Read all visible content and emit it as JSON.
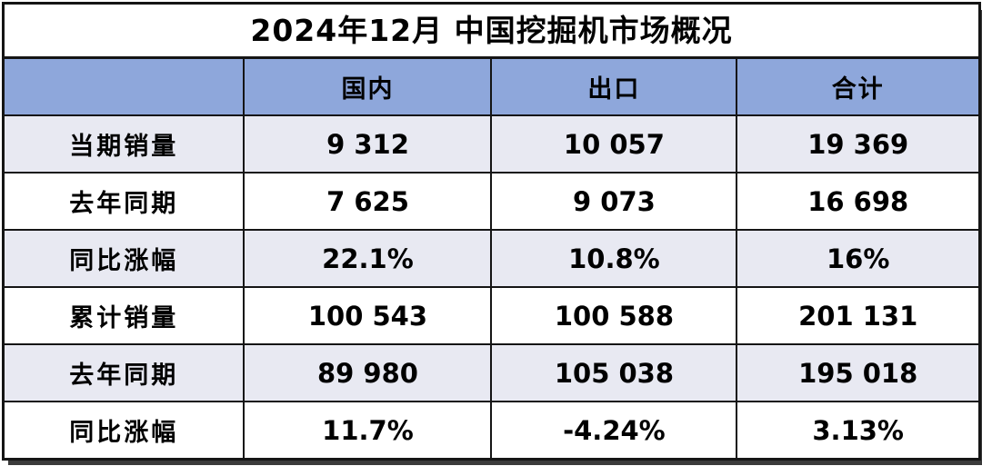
{
  "table": {
    "title": "2024年12月 中国挖掘机市场概况",
    "columns": [
      "",
      "国内",
      "出口",
      "合计"
    ],
    "rows": [
      {
        "label": "当期销量",
        "values": [
          "9 312",
          "10 057",
          "19 369"
        ]
      },
      {
        "label": "去年同期",
        "values": [
          "7 625",
          "9 073",
          "16 698"
        ]
      },
      {
        "label": "同比涨幅",
        "values": [
          "22.1%",
          "10.8%",
          "16%"
        ]
      },
      {
        "label": "累计销量",
        "values": [
          "100 543",
          "100 588",
          "201 131"
        ]
      },
      {
        "label": "去年同期",
        "values": [
          "89 980",
          "105 038",
          "195 018"
        ]
      },
      {
        "label": "同比涨幅",
        "values": [
          "11.7%",
          "-4.24%",
          "3.13%"
        ]
      }
    ],
    "colors": {
      "header_bg": "#8EA7DB",
      "row_alt_bg": "#E8E9F2",
      "row_bg": "#FFFFFF",
      "border": "#151515",
      "text": "#000000"
    }
  },
  "chart_data": {
    "type": "table",
    "title": "2024年12月 中国挖掘机市场概况",
    "columns": [
      "国内",
      "出口",
      "合计"
    ],
    "row_labels": [
      "当期销量",
      "去年同期",
      "同比涨幅",
      "累计销量",
      "去年同期",
      "同比涨幅"
    ],
    "rows": [
      [
        9312,
        10057,
        19369
      ],
      [
        7625,
        9073,
        16698
      ],
      [
        "22.1%",
        "10.8%",
        "16%"
      ],
      [
        100543,
        100588,
        201131
      ],
      [
        89980,
        105038,
        195018
      ],
      [
        "11.7%",
        "-4.24%",
        "3.13%"
      ]
    ],
    "notes": "current month sales, prior-year same period, YoY change, cumulative sales for domestic / export / total excavator market, December 2024"
  }
}
